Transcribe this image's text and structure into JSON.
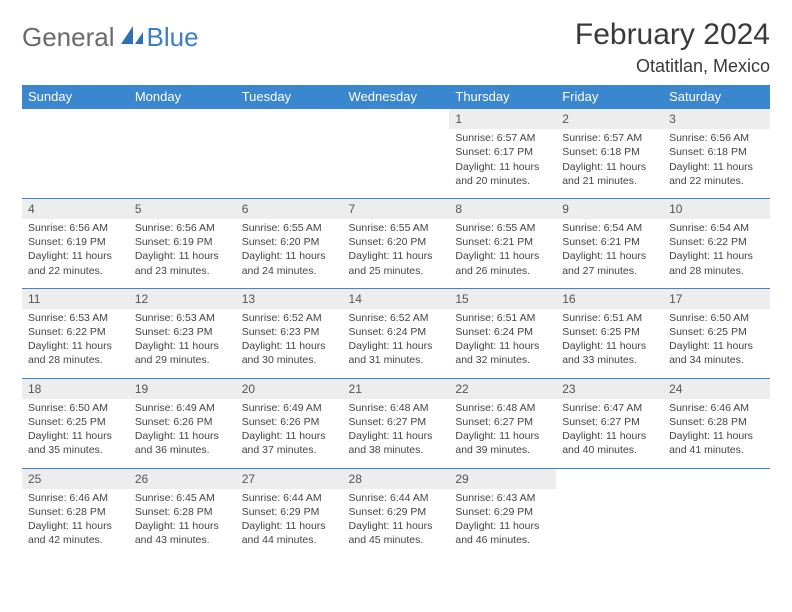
{
  "logo": {
    "text1": "General",
    "text2": "Blue"
  },
  "title": "February 2024",
  "location": "Otatitlan, Mexico",
  "colors": {
    "header_bg": "#3a86cf",
    "header_text": "#ffffff",
    "daynum_bg": "#ededed",
    "accent": "#3a7fc4",
    "text": "#3a3a3a"
  },
  "weekdays": [
    "Sunday",
    "Monday",
    "Tuesday",
    "Wednesday",
    "Thursday",
    "Friday",
    "Saturday"
  ],
  "weeks": [
    [
      null,
      null,
      null,
      null,
      {
        "n": "1",
        "sr": "6:57 AM",
        "ss": "6:17 PM",
        "dl": "11 hours and 20 minutes."
      },
      {
        "n": "2",
        "sr": "6:57 AM",
        "ss": "6:18 PM",
        "dl": "11 hours and 21 minutes."
      },
      {
        "n": "3",
        "sr": "6:56 AM",
        "ss": "6:18 PM",
        "dl": "11 hours and 22 minutes."
      }
    ],
    [
      {
        "n": "4",
        "sr": "6:56 AM",
        "ss": "6:19 PM",
        "dl": "11 hours and 22 minutes."
      },
      {
        "n": "5",
        "sr": "6:56 AM",
        "ss": "6:19 PM",
        "dl": "11 hours and 23 minutes."
      },
      {
        "n": "6",
        "sr": "6:55 AM",
        "ss": "6:20 PM",
        "dl": "11 hours and 24 minutes."
      },
      {
        "n": "7",
        "sr": "6:55 AM",
        "ss": "6:20 PM",
        "dl": "11 hours and 25 minutes."
      },
      {
        "n": "8",
        "sr": "6:55 AM",
        "ss": "6:21 PM",
        "dl": "11 hours and 26 minutes."
      },
      {
        "n": "9",
        "sr": "6:54 AM",
        "ss": "6:21 PM",
        "dl": "11 hours and 27 minutes."
      },
      {
        "n": "10",
        "sr": "6:54 AM",
        "ss": "6:22 PM",
        "dl": "11 hours and 28 minutes."
      }
    ],
    [
      {
        "n": "11",
        "sr": "6:53 AM",
        "ss": "6:22 PM",
        "dl": "11 hours and 28 minutes."
      },
      {
        "n": "12",
        "sr": "6:53 AM",
        "ss": "6:23 PM",
        "dl": "11 hours and 29 minutes."
      },
      {
        "n": "13",
        "sr": "6:52 AM",
        "ss": "6:23 PM",
        "dl": "11 hours and 30 minutes."
      },
      {
        "n": "14",
        "sr": "6:52 AM",
        "ss": "6:24 PM",
        "dl": "11 hours and 31 minutes."
      },
      {
        "n": "15",
        "sr": "6:51 AM",
        "ss": "6:24 PM",
        "dl": "11 hours and 32 minutes."
      },
      {
        "n": "16",
        "sr": "6:51 AM",
        "ss": "6:25 PM",
        "dl": "11 hours and 33 minutes."
      },
      {
        "n": "17",
        "sr": "6:50 AM",
        "ss": "6:25 PM",
        "dl": "11 hours and 34 minutes."
      }
    ],
    [
      {
        "n": "18",
        "sr": "6:50 AM",
        "ss": "6:25 PM",
        "dl": "11 hours and 35 minutes."
      },
      {
        "n": "19",
        "sr": "6:49 AM",
        "ss": "6:26 PM",
        "dl": "11 hours and 36 minutes."
      },
      {
        "n": "20",
        "sr": "6:49 AM",
        "ss": "6:26 PM",
        "dl": "11 hours and 37 minutes."
      },
      {
        "n": "21",
        "sr": "6:48 AM",
        "ss": "6:27 PM",
        "dl": "11 hours and 38 minutes."
      },
      {
        "n": "22",
        "sr": "6:48 AM",
        "ss": "6:27 PM",
        "dl": "11 hours and 39 minutes."
      },
      {
        "n": "23",
        "sr": "6:47 AM",
        "ss": "6:27 PM",
        "dl": "11 hours and 40 minutes."
      },
      {
        "n": "24",
        "sr": "6:46 AM",
        "ss": "6:28 PM",
        "dl": "11 hours and 41 minutes."
      }
    ],
    [
      {
        "n": "25",
        "sr": "6:46 AM",
        "ss": "6:28 PM",
        "dl": "11 hours and 42 minutes."
      },
      {
        "n": "26",
        "sr": "6:45 AM",
        "ss": "6:28 PM",
        "dl": "11 hours and 43 minutes."
      },
      {
        "n": "27",
        "sr": "6:44 AM",
        "ss": "6:29 PM",
        "dl": "11 hours and 44 minutes."
      },
      {
        "n": "28",
        "sr": "6:44 AM",
        "ss": "6:29 PM",
        "dl": "11 hours and 45 minutes."
      },
      {
        "n": "29",
        "sr": "6:43 AM",
        "ss": "6:29 PM",
        "dl": "11 hours and 46 minutes."
      },
      null,
      null
    ]
  ],
  "labels": {
    "sunrise": "Sunrise:",
    "sunset": "Sunset:",
    "daylight": "Daylight:"
  }
}
